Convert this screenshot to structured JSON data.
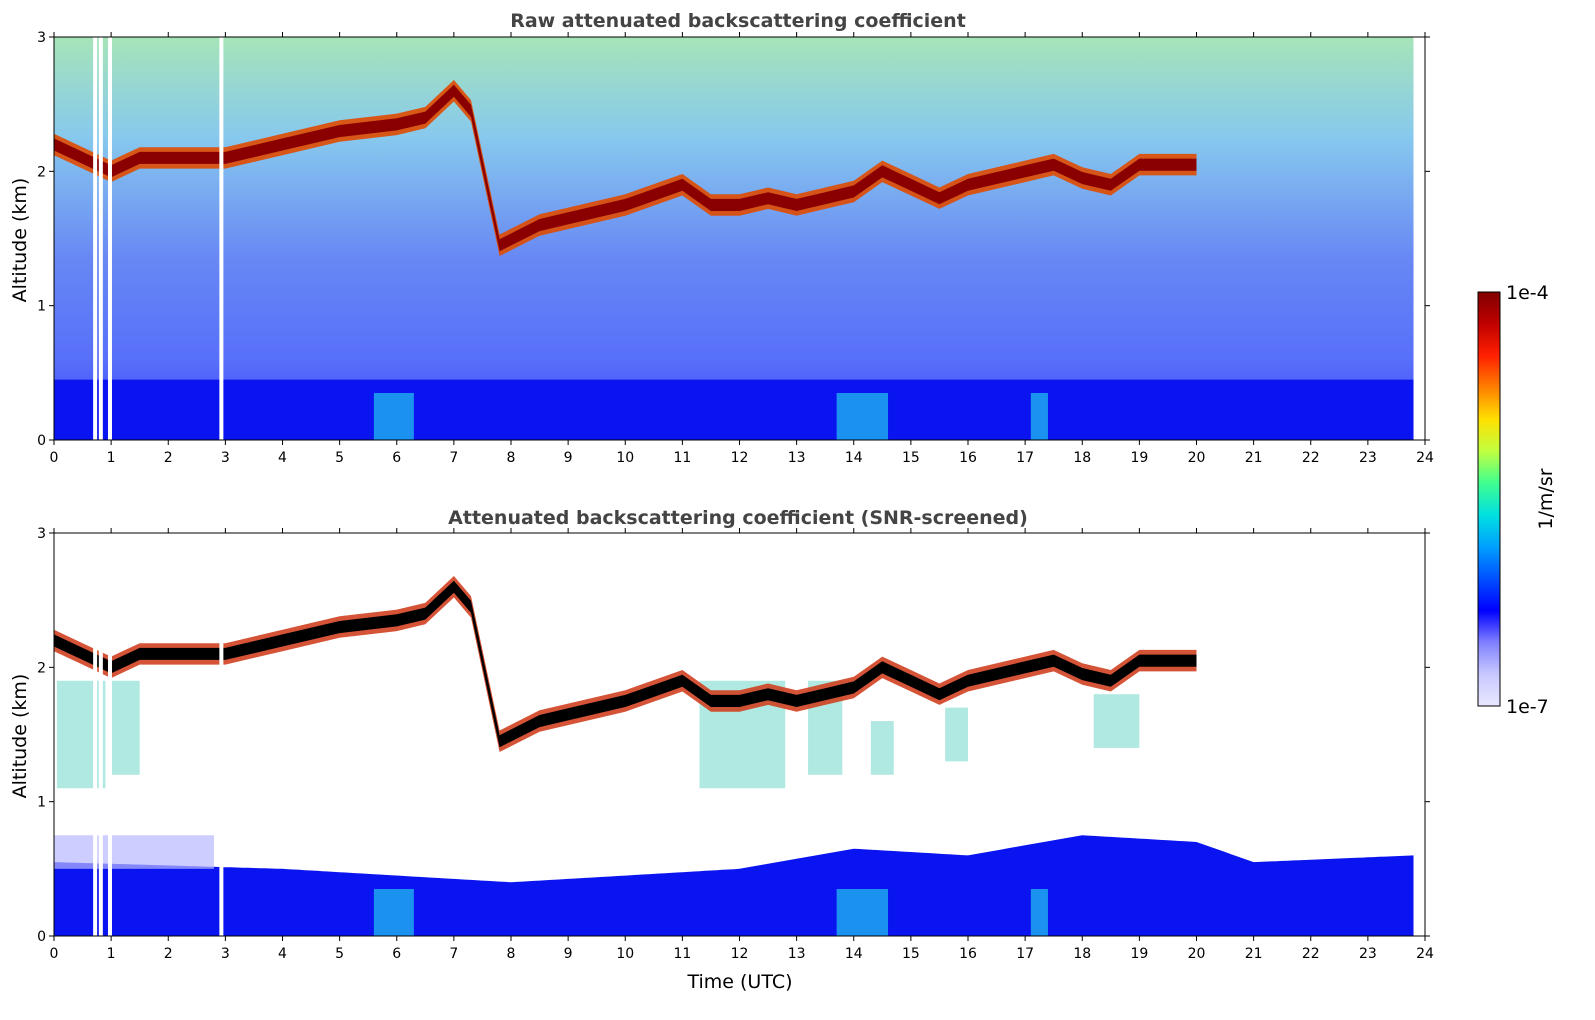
{
  "chart_data": [
    {
      "type": "heatmap",
      "title": "Raw attenuated backscattering coefficient",
      "xlabel": "",
      "ylabel": "Altitude (km)",
      "xlim": [
        0,
        24
      ],
      "ylim": [
        0,
        3
      ],
      "x_ticks": [
        "0",
        "1",
        "2",
        "3",
        "4",
        "5",
        "6",
        "7",
        "8",
        "9",
        "10",
        "11",
        "12",
        "13",
        "14",
        "15",
        "16",
        "17",
        "18",
        "19",
        "20",
        "21",
        "22",
        "23",
        "24"
      ],
      "y_ticks": [
        "0",
        "1",
        "2",
        "3"
      ],
      "data_end_hour": 23.8,
      "missing_columns_hours": [
        0.72,
        0.82,
        0.98,
        2.93
      ],
      "boundary_layer_top_km": [
        [
          0,
          0.45
        ],
        [
          6,
          0.45
        ],
        [
          12,
          0.45
        ],
        [
          18,
          0.45
        ],
        [
          23.8,
          0.45
        ]
      ],
      "cloud_layer_km": [
        [
          0.0,
          2.2
        ],
        [
          0.5,
          2.1
        ],
        [
          1.0,
          2.0
        ],
        [
          1.5,
          2.1
        ],
        [
          2.0,
          2.1
        ],
        [
          3.0,
          2.1
        ],
        [
          4.0,
          2.2
        ],
        [
          5.0,
          2.3
        ],
        [
          6.0,
          2.35
        ],
        [
          6.5,
          2.4
        ],
        [
          7.0,
          2.6
        ],
        [
          7.3,
          2.45
        ],
        [
          7.8,
          1.45
        ],
        [
          8.5,
          1.6
        ],
        [
          9.0,
          1.65
        ],
        [
          10.0,
          1.75
        ],
        [
          11.0,
          1.9
        ],
        [
          11.5,
          1.75
        ],
        [
          12.0,
          1.75
        ],
        [
          12.5,
          1.8
        ],
        [
          13.0,
          1.75
        ],
        [
          13.5,
          1.8
        ],
        [
          14.0,
          1.85
        ],
        [
          14.5,
          2.0
        ],
        [
          15.0,
          1.9
        ],
        [
          15.5,
          1.8
        ],
        [
          16.0,
          1.9
        ],
        [
          17.0,
          2.0
        ],
        [
          17.5,
          2.05
        ],
        [
          18.0,
          1.95
        ],
        [
          18.5,
          1.9
        ],
        [
          19.0,
          2.05
        ],
        [
          19.5,
          2.05
        ],
        [
          20.0,
          2.05
        ]
      ]
    },
    {
      "type": "heatmap",
      "title": "Attenuated backscattering coefficient (SNR-screened)",
      "xlabel": "Time (UTC)",
      "ylabel": "Altitude (km)",
      "xlim": [
        0,
        24
      ],
      "ylim": [
        0,
        3
      ],
      "x_ticks": [
        "0",
        "1",
        "2",
        "3",
        "4",
        "5",
        "6",
        "7",
        "8",
        "9",
        "10",
        "11",
        "12",
        "13",
        "14",
        "15",
        "16",
        "17",
        "18",
        "19",
        "20",
        "21",
        "22",
        "23",
        "24"
      ],
      "y_ticks": [
        "0",
        "1",
        "2",
        "3"
      ],
      "data_end_hour": 23.8,
      "missing_columns_hours": [
        0.72,
        0.82,
        0.98,
        2.93
      ],
      "boundary_layer_top_km": [
        [
          0,
          0.55
        ],
        [
          4,
          0.5
        ],
        [
          8,
          0.4
        ],
        [
          10,
          0.45
        ],
        [
          12,
          0.5
        ],
        [
          14,
          0.65
        ],
        [
          16,
          0.6
        ],
        [
          18,
          0.75
        ],
        [
          20,
          0.7
        ],
        [
          21,
          0.55
        ],
        [
          23.8,
          0.6
        ]
      ],
      "cloud_layer_km": [
        [
          0.0,
          2.2
        ],
        [
          0.5,
          2.1
        ],
        [
          1.0,
          2.0
        ],
        [
          1.5,
          2.1
        ],
        [
          2.0,
          2.1
        ],
        [
          3.0,
          2.1
        ],
        [
          4.0,
          2.2
        ],
        [
          5.0,
          2.3
        ],
        [
          6.0,
          2.35
        ],
        [
          6.5,
          2.4
        ],
        [
          7.0,
          2.6
        ],
        [
          7.3,
          2.45
        ],
        [
          7.8,
          1.45
        ],
        [
          8.5,
          1.6
        ],
        [
          9.0,
          1.65
        ],
        [
          10.0,
          1.75
        ],
        [
          11.0,
          1.9
        ],
        [
          11.5,
          1.75
        ],
        [
          12.0,
          1.75
        ],
        [
          12.5,
          1.8
        ],
        [
          13.0,
          1.75
        ],
        [
          13.5,
          1.8
        ],
        [
          14.0,
          1.85
        ],
        [
          14.5,
          2.0
        ],
        [
          15.0,
          1.9
        ],
        [
          15.5,
          1.8
        ],
        [
          16.0,
          1.9
        ],
        [
          17.0,
          2.0
        ],
        [
          17.5,
          2.05
        ],
        [
          18.0,
          1.95
        ],
        [
          18.5,
          1.9
        ],
        [
          19.0,
          2.05
        ],
        [
          19.5,
          2.05
        ],
        [
          20.0,
          2.05
        ]
      ]
    }
  ],
  "colorbar": {
    "max_label": "1e-4",
    "min_label": "1e-7",
    "unit_label": "1/m/sr",
    "colors": [
      "#e8e8ff",
      "#c8c8ff",
      "#8080ff",
      "#0000ff",
      "#0050ff",
      "#00a0ff",
      "#00e0e0",
      "#40ff90",
      "#c0ff40",
      "#ffe000",
      "#ff8000",
      "#ff2000",
      "#c00000",
      "#800000"
    ]
  }
}
